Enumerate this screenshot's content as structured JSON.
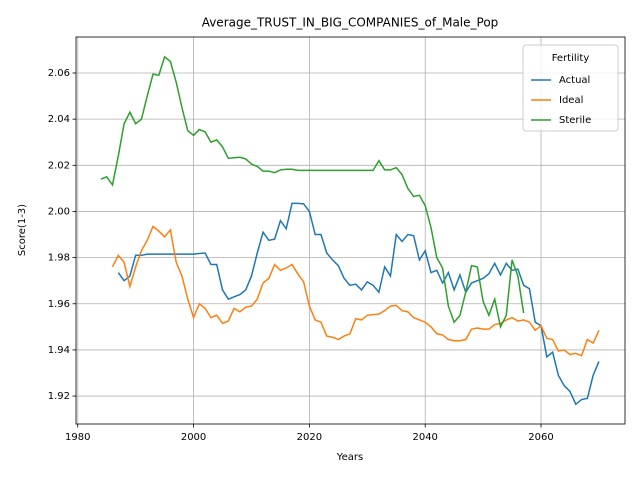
{
  "chart_data": {
    "type": "line",
    "title": "Average_TRUST_IN_BIG_COMPANIES_of_Male_Pop",
    "x_label": "Years",
    "y_label": "Score(1-3)",
    "x": [
      1984,
      1985,
      1986,
      1987,
      1988,
      1989,
      1990,
      1991,
      1992,
      1993,
      1994,
      1995,
      1996,
      1997,
      1998,
      1999,
      2000,
      2001,
      2002,
      2003,
      2004,
      2005,
      2006,
      2007,
      2008,
      2009,
      2010,
      2011,
      2012,
      2013,
      2014,
      2015,
      2016,
      2017,
      2018,
      2019,
      2020,
      2021,
      2022,
      2023,
      2024,
      2025,
      2026,
      2027,
      2028,
      2029,
      2030,
      2031,
      2032,
      2033,
      2034,
      2035,
      2036,
      2037,
      2038,
      2039,
      2040,
      2041,
      2042,
      2043,
      2044,
      2045,
      2046,
      2047,
      2048,
      2049,
      2050,
      2051,
      2052,
      2053,
      2054,
      2055,
      2056,
      2057,
      2058,
      2059,
      2060,
      2061,
      2062,
      2063,
      2064,
      2065,
      2066,
      2067,
      2068,
      2069,
      2070
    ],
    "series": [
      {
        "name": "Actual",
        "color": "#1f77b4",
        "values": [
          null,
          null,
          null,
          1.9735,
          1.97,
          1.972,
          1.981,
          1.981,
          1.9815,
          1.9815,
          1.9815,
          1.9815,
          1.9815,
          1.9815,
          1.9815,
          1.9815,
          1.9815,
          1.9818,
          1.982,
          1.977,
          1.977,
          1.966,
          1.962,
          1.963,
          1.964,
          1.966,
          1.972,
          1.982,
          1.991,
          1.9875,
          1.988,
          1.996,
          1.9925,
          2.0035,
          2.0035,
          2.0033,
          2.0,
          1.99,
          1.99,
          1.982,
          1.979,
          1.9765,
          1.971,
          1.968,
          1.9685,
          1.966,
          1.9695,
          1.968,
          1.965,
          1.976,
          1.972,
          1.99,
          1.987,
          1.99,
          1.9895,
          1.979,
          1.983,
          1.9735,
          1.9745,
          1.969,
          1.9735,
          1.966,
          1.9725,
          1.965,
          1.969,
          1.97,
          1.971,
          1.973,
          1.9775,
          1.9725,
          1.9775,
          1.9745,
          1.975,
          1.968,
          1.9665,
          1.952,
          1.9505,
          1.937,
          1.939,
          1.929,
          1.9245,
          1.922,
          1.9165,
          1.9185,
          1.919,
          1.929,
          1.935
        ]
      },
      {
        "name": "Ideal",
        "color": "#ff7f0e",
        "values": [
          null,
          null,
          1.976,
          1.981,
          1.978,
          1.9675,
          1.976,
          1.983,
          1.9875,
          1.9935,
          1.9915,
          1.989,
          1.992,
          1.978,
          1.972,
          1.962,
          1.954,
          1.96,
          1.958,
          1.954,
          1.955,
          1.9515,
          1.9525,
          1.958,
          1.9565,
          1.9585,
          1.959,
          1.962,
          1.969,
          1.971,
          1.977,
          1.9745,
          1.9755,
          1.977,
          1.973,
          1.9695,
          1.959,
          1.953,
          1.952,
          1.946,
          1.9455,
          1.9445,
          1.946,
          1.947,
          1.9535,
          1.953,
          1.955,
          1.9553,
          1.9555,
          1.957,
          1.959,
          1.9593,
          1.957,
          1.9565,
          1.954,
          1.953,
          1.952,
          1.95,
          1.947,
          1.9465,
          1.9445,
          1.944,
          1.944,
          1.9445,
          1.949,
          1.9495,
          1.949,
          1.949,
          1.951,
          1.9515,
          1.953,
          1.954,
          1.9525,
          1.953,
          1.952,
          1.9485,
          1.9505,
          1.945,
          1.9445,
          1.9395,
          1.94,
          1.938,
          1.9385,
          1.9375,
          1.9445,
          1.943,
          1.9485
        ]
      },
      {
        "name": "Sterile",
        "color": "#2ca02c",
        "values": [
          2.014,
          2.015,
          2.0115,
          2.024,
          2.038,
          2.043,
          2.038,
          2.04,
          2.05,
          2.0595,
          2.059,
          2.067,
          2.065,
          2.056,
          2.045,
          2.035,
          2.033,
          2.0355,
          2.0345,
          2.03,
          2.031,
          2.028,
          2.023,
          2.0233,
          2.0235,
          2.0228,
          2.0205,
          2.0195,
          2.0175,
          2.0175,
          2.0168,
          2.018,
          2.0183,
          2.0183,
          2.0178,
          2.0178,
          2.0178,
          2.0178,
          2.0178,
          2.0178,
          2.0178,
          2.0178,
          2.0178,
          2.0178,
          2.0178,
          2.0178,
          2.0178,
          2.0178,
          2.022,
          2.018,
          2.018,
          2.019,
          2.016,
          2.01,
          2.0065,
          2.007,
          2.0025,
          1.993,
          1.98,
          1.9755,
          1.959,
          1.952,
          1.955,
          1.965,
          1.9765,
          1.976,
          1.961,
          1.955,
          1.962,
          1.95,
          1.955,
          1.979,
          1.972,
          1.956,
          null,
          null,
          null,
          null,
          null,
          null,
          null,
          null,
          null,
          null,
          null,
          null,
          null
        ]
      }
    ],
    "xlim": [
      1979.7,
      2074.5
    ],
    "ylim": [
      1.9079,
      2.0756
    ],
    "xticks": [
      1980,
      2000,
      2020,
      2040,
      2060
    ],
    "yticks": [
      1.92,
      1.94,
      1.96,
      1.98,
      {
        "value": 2,
        "label": "2.00"
      },
      2.02,
      2.04,
      2.06
    ],
    "grid": true,
    "legend_title": "Fertility",
    "legend_position": "upper right"
  }
}
